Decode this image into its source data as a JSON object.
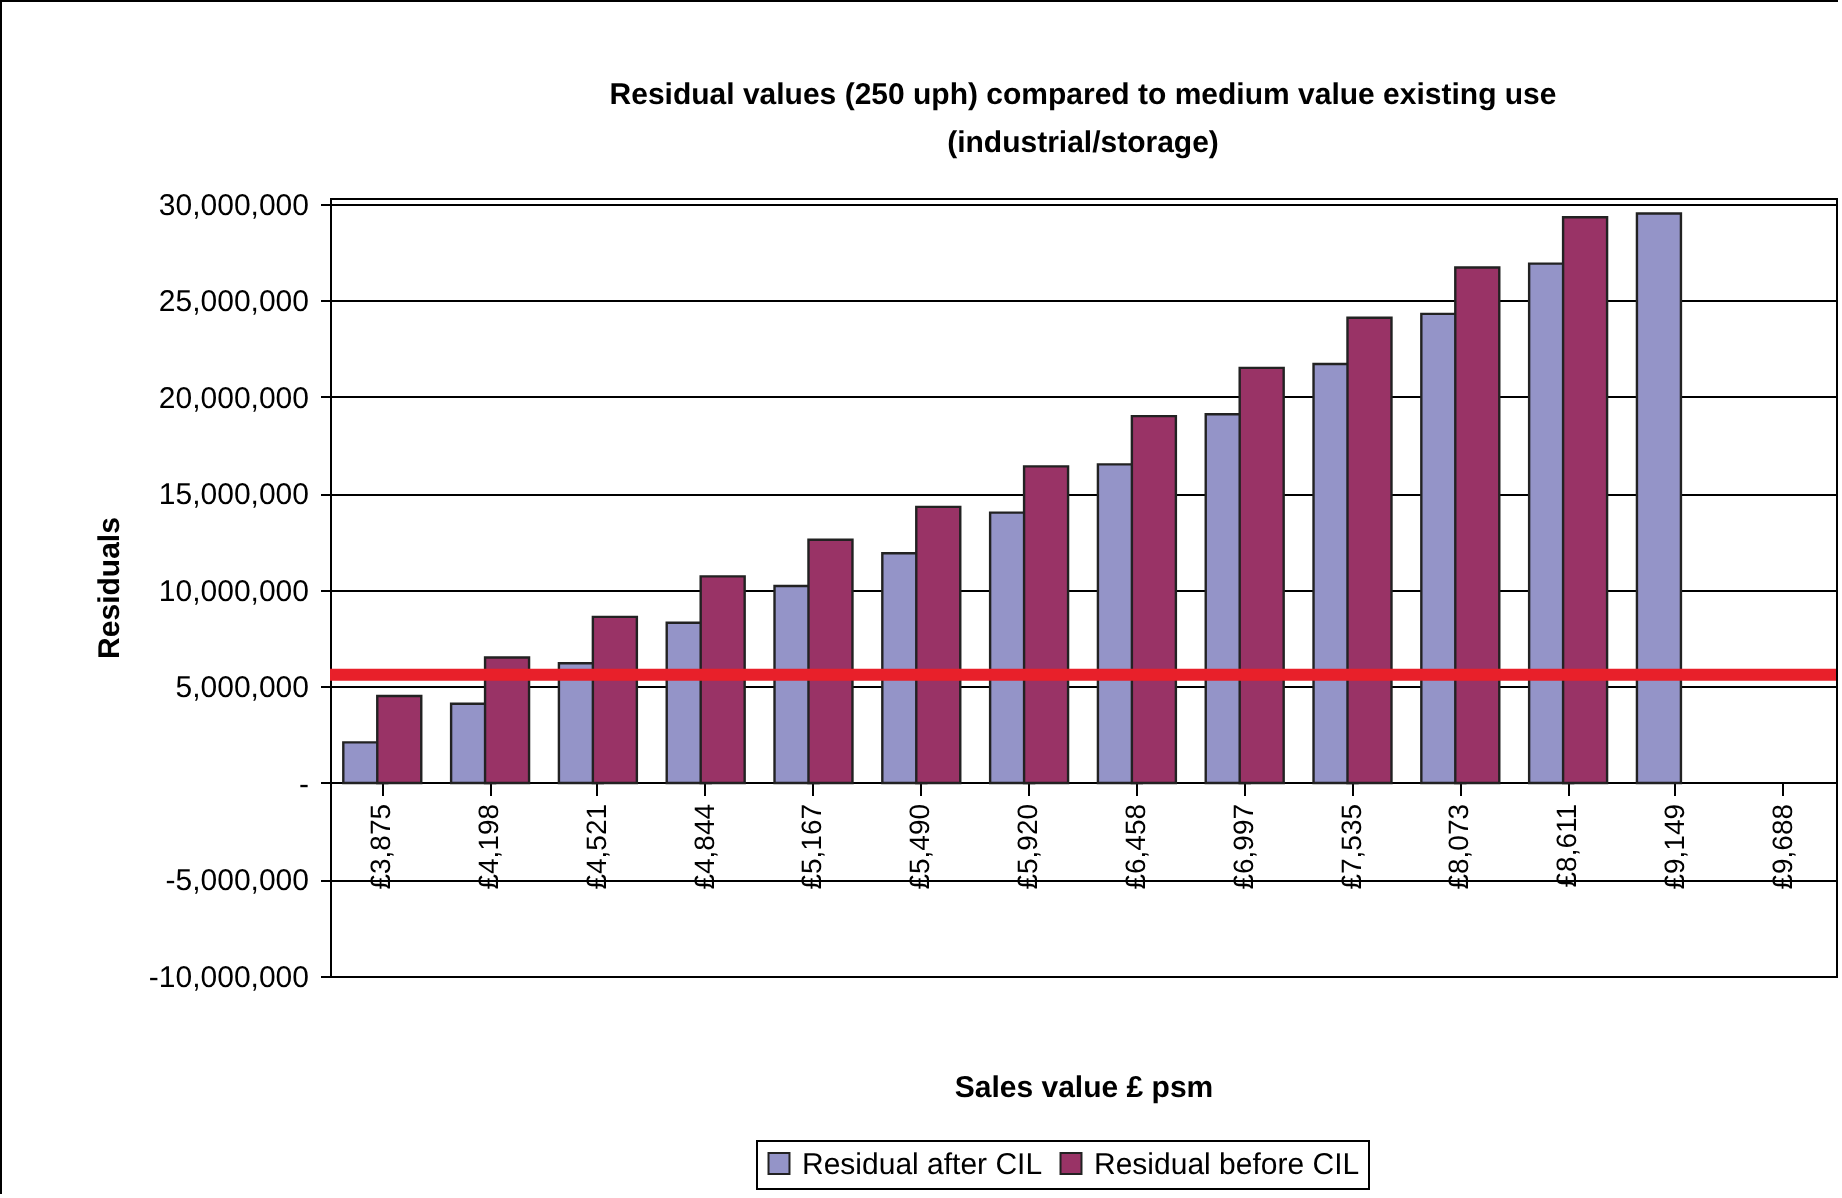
{
  "chart_data": {
    "type": "bar",
    "title": "Residual values (250 uph) compared to medium value existing use\n(industrial/storage)",
    "xlabel": "Sales value £ psm",
    "ylabel": "Residuals",
    "categories": [
      "£3,875",
      "£4,198",
      "£4,521",
      "£4,844",
      "£5,167",
      "£5,490",
      "£5,920",
      "£6,458",
      "£6,997",
      "£7,535",
      "£8,073",
      "£8,611",
      "£9,149",
      "£9,688"
    ],
    "series": [
      {
        "name": "Residual after CIL",
        "color": "#9494c8",
        "values": [
          2100000,
          4100000,
          6200000,
          8300000,
          10200000,
          11900000,
          14000000,
          16500000,
          19100000,
          21700000,
          24300000,
          26900000,
          29500000,
          null
        ]
      },
      {
        "name": "Residual before CIL",
        "color": "#993366",
        "values": [
          4500000,
          6500000,
          8600000,
          10700000,
          12600000,
          14300000,
          16400000,
          19000000,
          21500000,
          24100000,
          26700000,
          29300000,
          null,
          null
        ]
      }
    ],
    "ylim": [
      -10000000,
      30300000
    ],
    "yticks": [
      {
        "value": -10000000,
        "label": "-10,000,000"
      },
      {
        "value": -5000000,
        "label": "-5,000,000"
      },
      {
        "value": 0,
        "label": "-"
      },
      {
        "value": 5000000,
        "label": "5,000,000"
      },
      {
        "value": 10000000,
        "label": "10,000,000"
      },
      {
        "value": 15000000,
        "label": "15,000,000"
      },
      {
        "value": 20000000,
        "label": "20,000,000"
      },
      {
        "value": 25000000,
        "label": "25,000,000"
      },
      {
        "value": 30000000,
        "label": "30,000,000"
      }
    ],
    "grid": "y",
    "legend": "bottom",
    "ref_lines": [
      {
        "axis": "y",
        "value": 5600000,
        "color": "#e8202a"
      }
    ]
  }
}
